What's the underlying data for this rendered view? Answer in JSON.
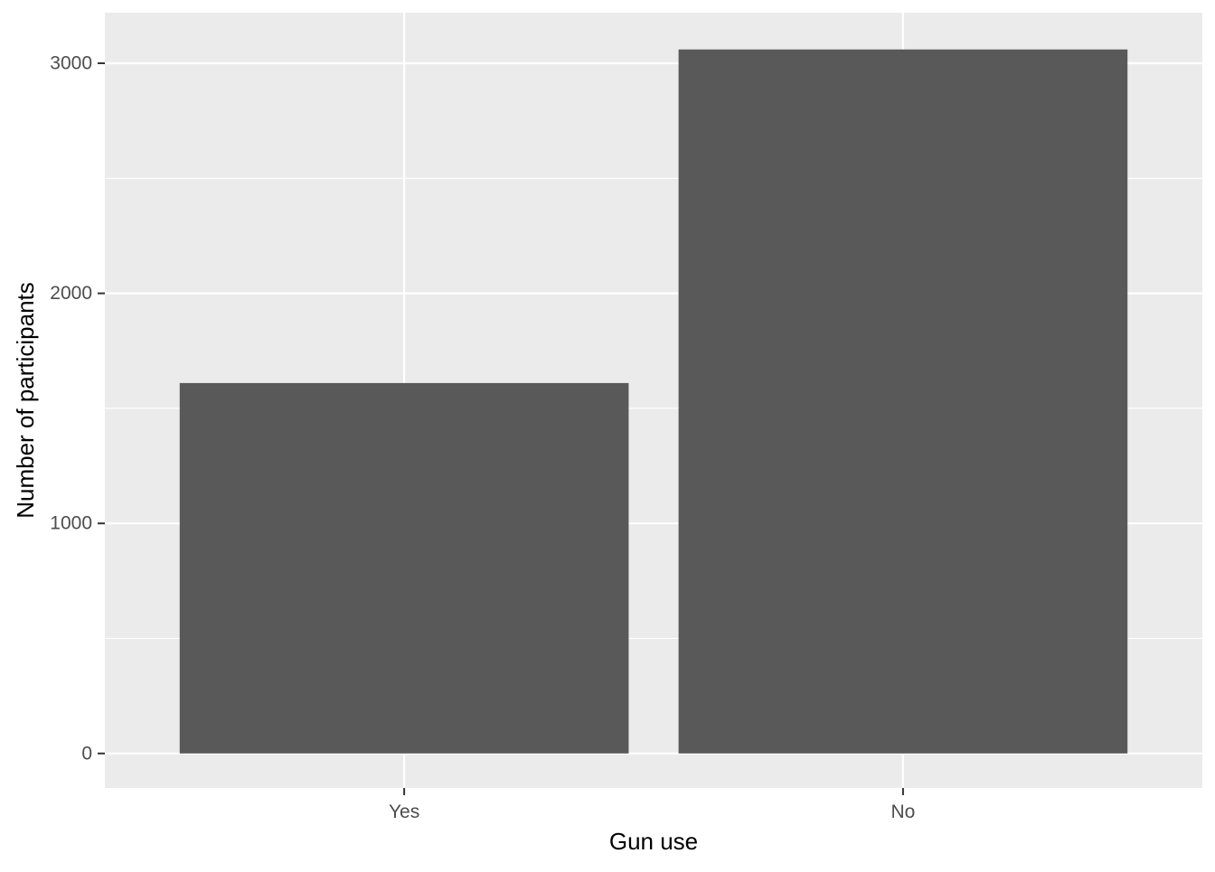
{
  "chart_data": {
    "type": "bar",
    "categories": [
      "Yes",
      "No"
    ],
    "values": [
      1610,
      3060
    ],
    "title": "",
    "xlabel": "Gun use",
    "ylabel": "Number of participants",
    "ylim": [
      -150,
      3220
    ],
    "yticks": [
      0,
      1000,
      2000,
      3000
    ],
    "yticks_minor": [
      500,
      1500,
      2500
    ],
    "grid": true,
    "legend": "none",
    "colors": {
      "bar": "#595959",
      "panel": "#EBEBEB",
      "grid": "#FFFFFF",
      "tick_text": "#4D4D4D",
      "axis_title": "#000000",
      "tick_mark": "#333333"
    }
  }
}
